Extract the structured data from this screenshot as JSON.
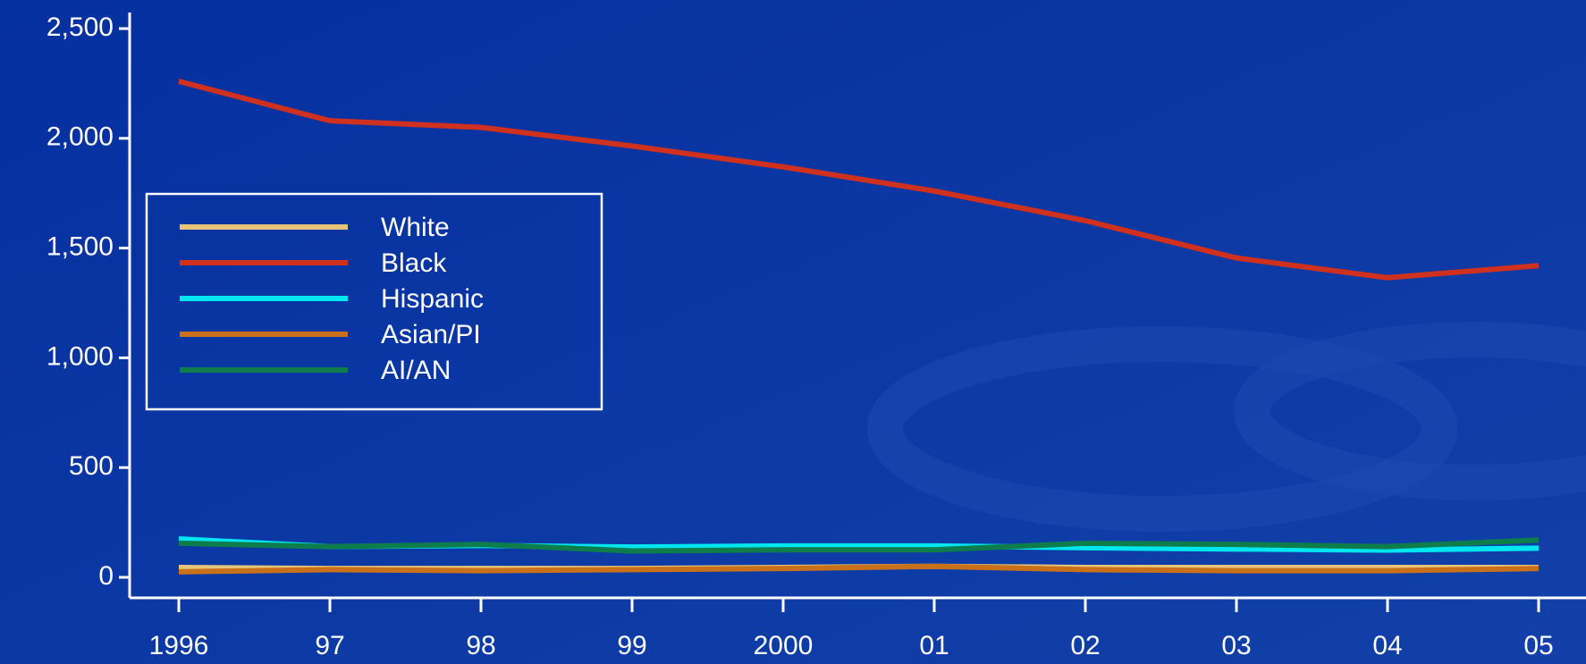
{
  "chart_data": {
    "type": "line",
    "categories": [
      "1996",
      "97",
      "98",
      "99",
      "2000",
      "01",
      "02",
      "03",
      "04",
      "05"
    ],
    "series": [
      {
        "name": "White",
        "color": "#e6c47a",
        "values": [
          45,
          40,
          40,
          40,
          45,
          50,
          45,
          45,
          45,
          45
        ]
      },
      {
        "name": "Black",
        "color": "#d0301e",
        "values": [
          2260,
          2080,
          2050,
          1965,
          1870,
          1760,
          1625,
          1455,
          1365,
          1420
        ]
      },
      {
        "name": "Hispanic",
        "color": "#00e6f0",
        "values": [
          175,
          140,
          145,
          138,
          143,
          143,
          135,
          129,
          124,
          133
        ]
      },
      {
        "name": "Asian/PI",
        "color": "#c8701a",
        "values": [
          25,
          35,
          30,
          35,
          40,
          50,
          35,
          30,
          30,
          40
        ]
      },
      {
        "name": "AI/AN",
        "color": "#0f7c4c",
        "values": [
          155,
          140,
          150,
          120,
          125,
          125,
          155,
          150,
          140,
          170
        ]
      }
    ],
    "ylim": [
      0,
      2500
    ],
    "yticks": [
      0,
      500,
      {
        "value": 1000,
        "label": "1,000"
      },
      {
        "value": 1500,
        "label": "1,500"
      },
      {
        "value": 2000,
        "label": "2,000"
      },
      {
        "value": 2500,
        "label": "2,500"
      }
    ],
    "grid": false
  }
}
